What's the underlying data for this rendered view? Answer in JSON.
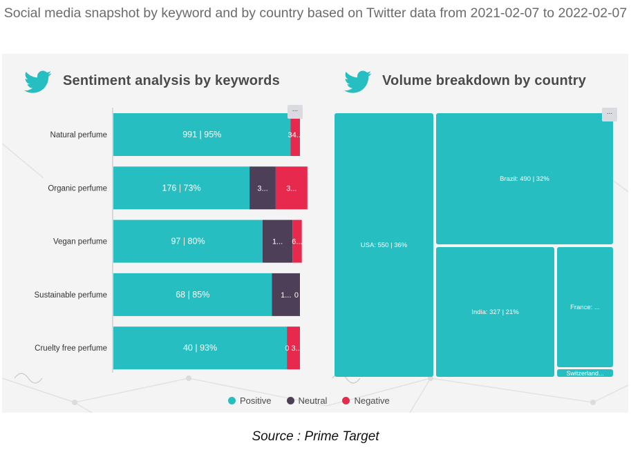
{
  "page": {
    "title": "Social media snapshot by keyword and by country based on Twitter data from 2021-02-07 to 2022-02-07",
    "source": "Source : Prime Target"
  },
  "colors": {
    "positive": "#26bec0",
    "neutral": "#4d3f57",
    "negative": "#e8294e",
    "panel_bg": "#f4f4f4",
    "title_text": "#6b6b6b"
  },
  "icons": {
    "twitter": "twitter-bird-icon",
    "menu": "ellipsis-icon"
  },
  "chart_data": [
    {
      "type": "bar",
      "orientation": "horizontal",
      "stacked": true,
      "title": "Sentiment analysis by keywords",
      "menu_label": "...",
      "categories": [
        "Natural perfume",
        "Organic perfume",
        "Vegan perfume",
        "Sustainable perfume",
        "Cruelty free perfume"
      ],
      "series": [
        {
          "name": "Positive",
          "color": "#26bec0",
          "values": [
            991,
            176,
            97,
            68,
            40
          ],
          "shares": [
            0.95,
            0.73,
            0.8,
            0.85,
            0.93
          ],
          "labels": [
            "991 | 95%",
            "176 | 73%",
            "97 | 80%",
            "68 | 85%",
            "40 | 93%"
          ]
        },
        {
          "name": "Neutral",
          "color": "#4d3f57",
          "shares": [
            0.0,
            0.14,
            0.16,
            0.15,
            0.0
          ],
          "labels": [
            "",
            "3...",
            "1...",
            "1...",
            ""
          ]
        },
        {
          "name": "Negative",
          "color": "#e8294e",
          "shares": [
            0.05,
            0.17,
            0.05,
            0.0,
            0.07
          ],
          "labels": [
            "34...",
            "3...",
            "6...",
            "0",
            "0 3..."
          ]
        }
      ],
      "grid": false,
      "legend": "bottom"
    },
    {
      "type": "treemap",
      "title": "Volume breakdown by country",
      "menu_label": "...",
      "items": [
        {
          "label": "USA: 550 | 36%",
          "country": "USA",
          "value": 550,
          "share": 0.36
        },
        {
          "label": "Brazil: 490 | 32%",
          "country": "Brazil",
          "value": 490,
          "share": 0.32
        },
        {
          "label": "India: 327 | 21%",
          "country": "India",
          "value": 327,
          "share": 0.21
        },
        {
          "label": "France: ...",
          "country": "France"
        },
        {
          "label": "Switzerland...",
          "country": "Switzerland"
        }
      ]
    }
  ],
  "legend": {
    "items": [
      {
        "label": "Positive",
        "color": "#26bec0"
      },
      {
        "label": "Neutral",
        "color": "#4d3f57"
      },
      {
        "label": "Negative",
        "color": "#e8294e"
      }
    ]
  }
}
